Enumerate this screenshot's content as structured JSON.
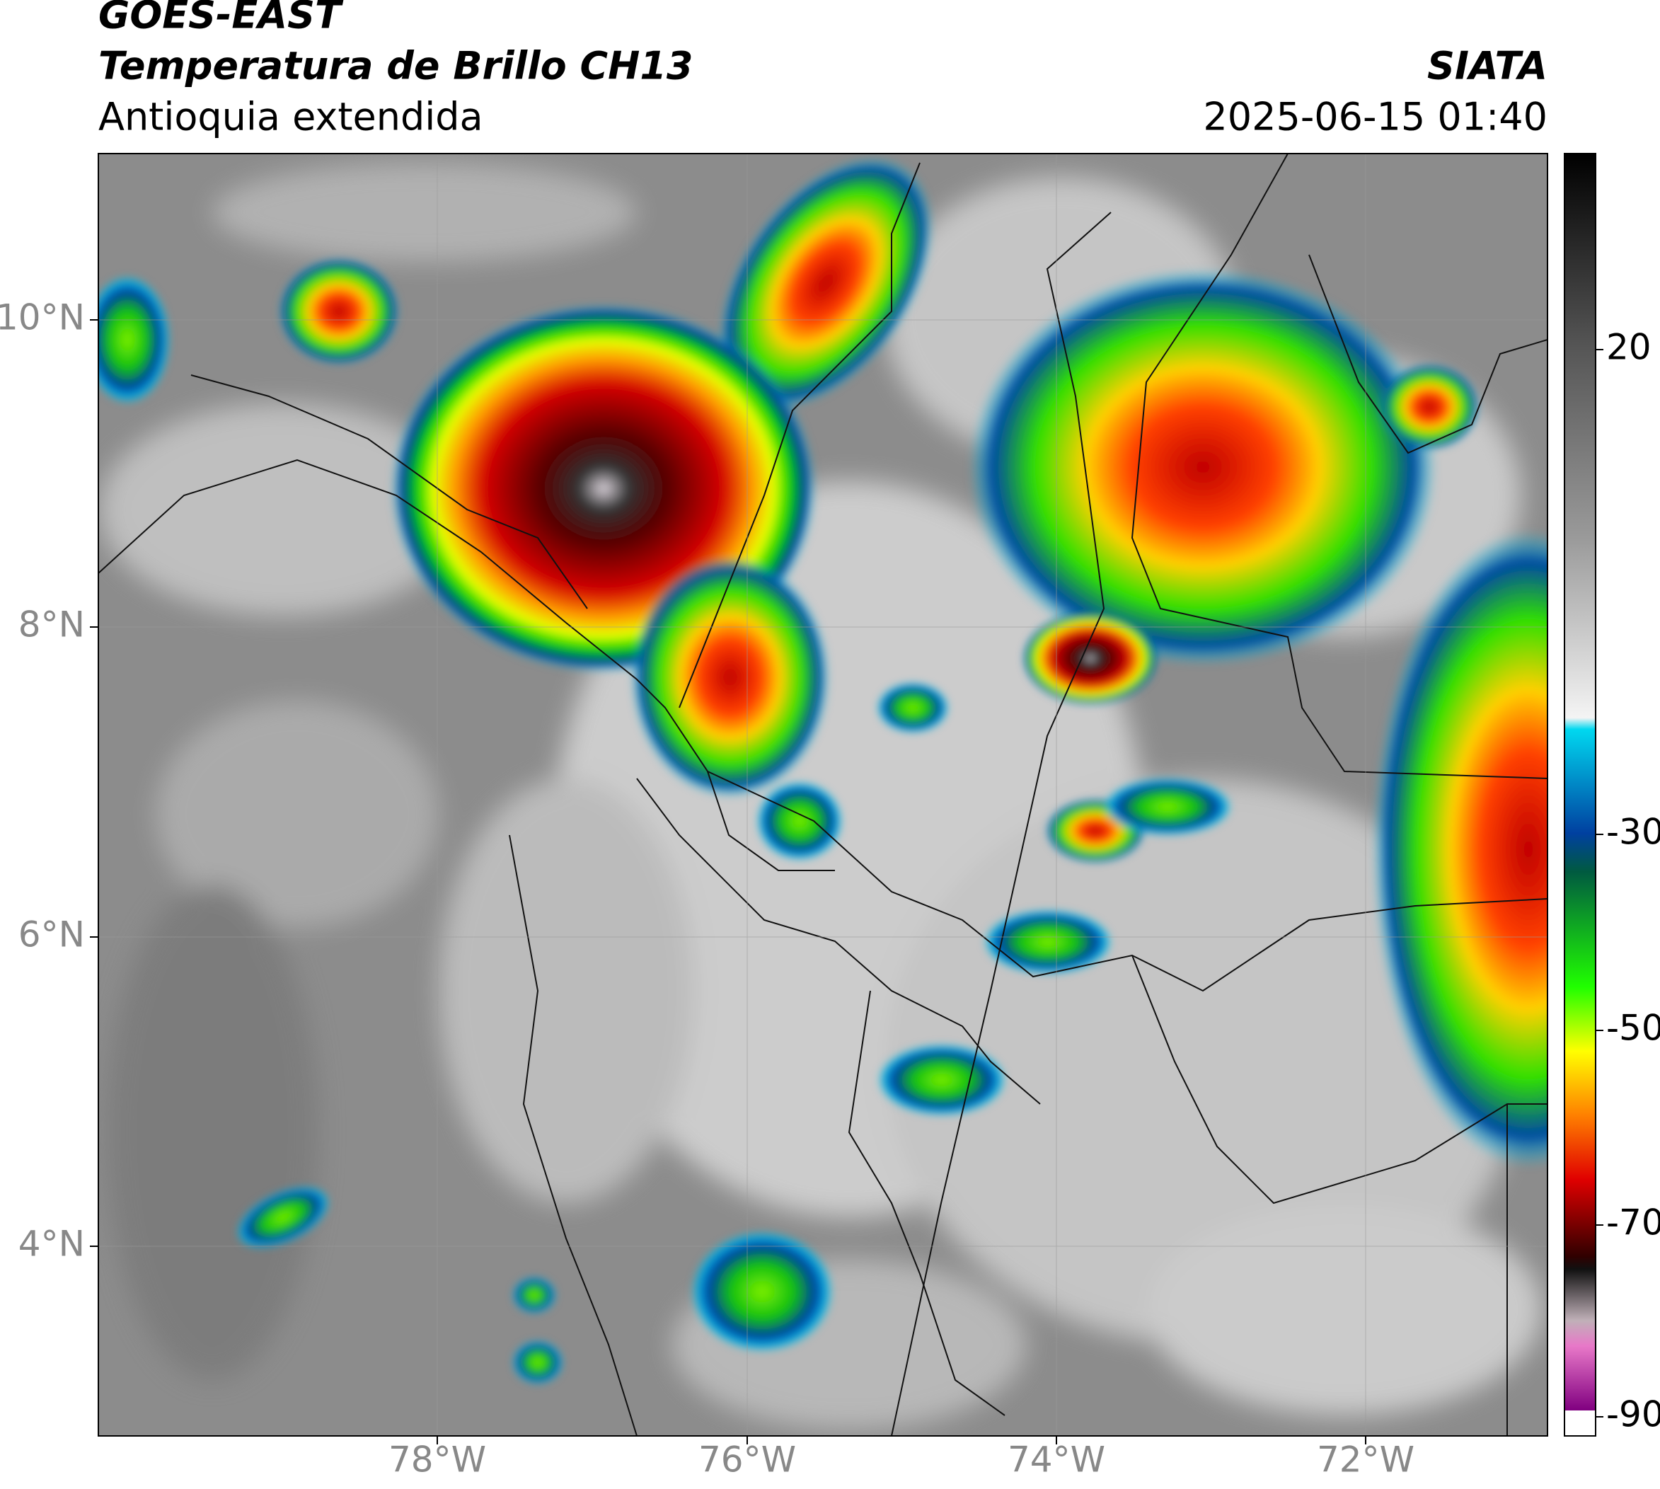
{
  "header": {
    "title": "GOES-EAST",
    "subtitle": "Temperatura de Brillo CH13",
    "region": "Antioquia extendida",
    "source": "SIATA",
    "datetime": "2025-06-15 01:40"
  },
  "map": {
    "lat_labels": [
      "10°N",
      "8°N",
      "6°N",
      "4°N"
    ],
    "lon_labels": [
      "78°W",
      "76°W",
      "74°W",
      "72°W"
    ]
  },
  "colorbar": {
    "labels": [
      "20",
      "-30",
      "-50",
      "-70",
      "-90"
    ]
  }
}
